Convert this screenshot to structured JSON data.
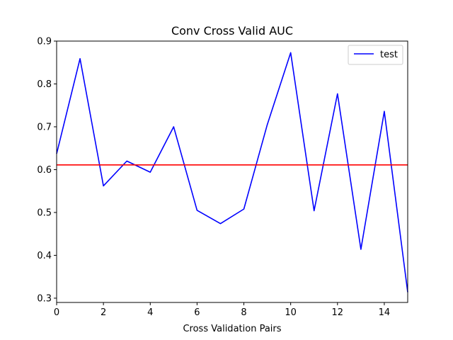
{
  "chart_data": {
    "type": "line",
    "title": "Conv Cross Valid AUC",
    "xlabel": "Cross Validation Pairs",
    "ylabel": "",
    "xlim": [
      0,
      15
    ],
    "ylim": [
      0.29,
      0.9
    ],
    "xticks": [
      0,
      2,
      4,
      6,
      8,
      10,
      12,
      14
    ],
    "yticks": [
      0.3,
      0.4,
      0.5,
      0.6,
      0.7,
      0.8,
      0.9
    ],
    "xtick_labels": [
      "0",
      "2",
      "4",
      "6",
      "8",
      "10",
      "12",
      "14"
    ],
    "ytick_labels": [
      "0.3",
      "0.4",
      "0.5",
      "0.6",
      "0.7",
      "0.8",
      "0.9"
    ],
    "grid": false,
    "legend_placement": "top-right",
    "series": [
      {
        "name": "test",
        "color": "#0000ff",
        "x": [
          0,
          1,
          2,
          3,
          4,
          5,
          6,
          7,
          8,
          9,
          10,
          11,
          12,
          13,
          14,
          15
        ],
        "values": [
          0.637,
          0.859,
          0.562,
          0.62,
          0.594,
          0.7,
          0.505,
          0.474,
          0.508,
          0.705,
          0.873,
          0.504,
          0.777,
          0.414,
          0.736,
          0.314
        ]
      }
    ],
    "reference_line": {
      "y": 0.611,
      "color": "#ff0000"
    }
  }
}
